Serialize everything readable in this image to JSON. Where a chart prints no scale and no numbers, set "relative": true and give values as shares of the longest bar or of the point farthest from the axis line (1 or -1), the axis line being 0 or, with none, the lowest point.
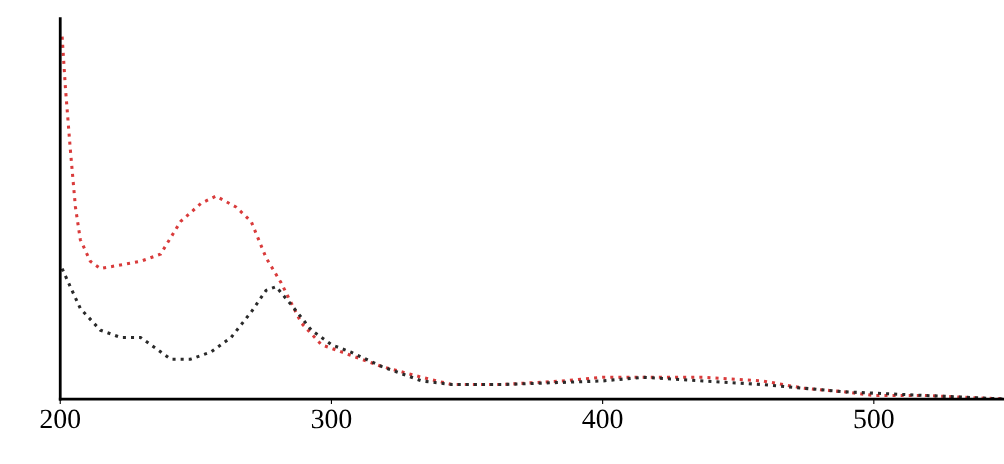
{
  "chart_data": {
    "type": "line",
    "relative": true,
    "tick_labels": "x",
    "line_style": "dotted",
    "grid": false,
    "legend": false,
    "xlim": [
      200,
      548
    ],
    "xticks": [
      200,
      300,
      400,
      500
    ],
    "series": [
      {
        "color": "#d93b3b",
        "x": [
          200.7,
          201.9,
          203.7,
          205.6,
          207.4,
          211.1,
          214.8,
          222.2,
          229.6,
          237.0,
          244.4,
          251.9,
          257.4,
          264.8,
          270.4,
          275.9,
          281.5,
          288.9,
          296.3,
          303.7,
          318.5,
          333.3,
          344.4,
          363,
          385,
          400,
          414.8,
          437,
          459,
          474,
          488.9,
          500,
          518.5,
          548
        ],
        "values": [
          1.0,
          0.86,
          0.69,
          0.53,
          0.44,
          0.38,
          0.36,
          0.37,
          0.38,
          0.4,
          0.49,
          0.54,
          0.56,
          0.53,
          0.49,
          0.39,
          0.32,
          0.21,
          0.15,
          0.13,
          0.09,
          0.06,
          0.04,
          0.04,
          0.05,
          0.06,
          0.06,
          0.06,
          0.05,
          0.03,
          0.02,
          0.01,
          0.01,
          0.0
        ]
      },
      {
        "color": "#2a2a2a",
        "x": [
          200.7,
          203.7,
          207.4,
          214.8,
          222.2,
          229.6,
          235.2,
          240.7,
          248.1,
          255.6,
          263,
          270.4,
          275.9,
          279.6,
          285.2,
          292.6,
          300,
          307,
          318.5,
          333.3,
          344.4,
          363,
          400,
          414.8,
          437,
          459,
          488.9,
          518.5,
          548
        ],
        "values": [
          0.36,
          0.31,
          0.25,
          0.19,
          0.17,
          0.17,
          0.14,
          0.11,
          0.11,
          0.13,
          0.17,
          0.24,
          0.3,
          0.31,
          0.26,
          0.19,
          0.15,
          0.13,
          0.09,
          0.05,
          0.04,
          0.04,
          0.05,
          0.06,
          0.05,
          0.04,
          0.02,
          0.01,
          0.0
        ]
      }
    ]
  }
}
